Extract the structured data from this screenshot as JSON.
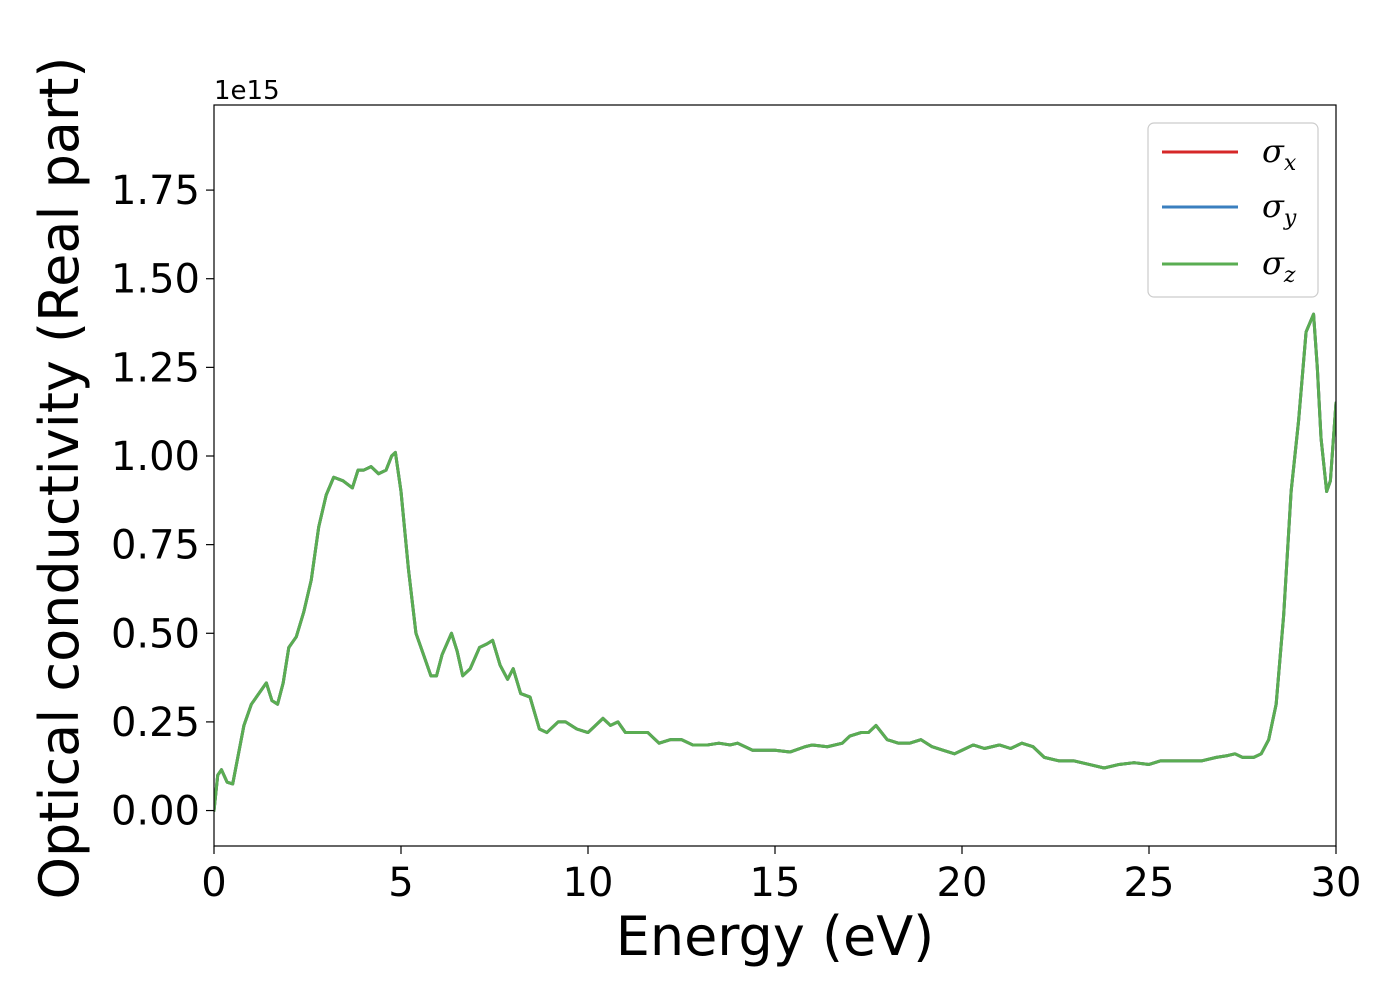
{
  "chart_data": {
    "type": "line",
    "title": "",
    "xlabel": "Energy (eV)",
    "ylabel": "Optical conductivity (Real part)",
    "y_offset_text": "1e15",
    "y_multiplier": 1000000000000000.0,
    "xlim": [
      0,
      30
    ],
    "ylim": [
      -0.1,
      1.99
    ],
    "x_ticks": [
      0,
      5,
      10,
      15,
      20,
      25,
      30
    ],
    "x_tick_labels": [
      "0",
      "5",
      "10",
      "15",
      "20",
      "25",
      "30"
    ],
    "y_ticks": [
      0.0,
      0.25,
      0.5,
      0.75,
      1.0,
      1.25,
      1.5,
      1.75
    ],
    "y_tick_labels": [
      "0.00",
      "0.25",
      "0.50",
      "0.75",
      "1.00",
      "1.25",
      "1.50",
      "1.75"
    ],
    "grid": false,
    "legend_position": "top-right",
    "colors": {
      "sigma_x": "#d62728",
      "sigma_y": "#3a7fbf",
      "sigma_z": "#5aad52"
    },
    "x": [
      0,
      0.1,
      0.2,
      0.35,
      0.5,
      0.6,
      0.8,
      1.0,
      1.2,
      1.4,
      1.55,
      1.7,
      1.85,
      2.0,
      2.2,
      2.4,
      2.6,
      2.8,
      3.0,
      3.2,
      3.45,
      3.7,
      3.85,
      4.0,
      4.2,
      4.4,
      4.6,
      4.75,
      4.85,
      5.0,
      5.2,
      5.4,
      5.6,
      5.8,
      5.95,
      6.1,
      6.35,
      6.5,
      6.65,
      6.85,
      7.1,
      7.3,
      7.45,
      7.65,
      7.85,
      8.0,
      8.2,
      8.45,
      8.7,
      8.9,
      9.2,
      9.4,
      9.7,
      10.0,
      10.4,
      10.6,
      10.8,
      11.0,
      11.3,
      11.6,
      11.9,
      12.2,
      12.5,
      12.8,
      13.2,
      13.5,
      13.8,
      14.0,
      14.4,
      14.8,
      15.0,
      15.4,
      15.8,
      16.0,
      16.4,
      16.8,
      17.0,
      17.3,
      17.5,
      17.7,
      18.0,
      18.3,
      18.6,
      18.9,
      19.2,
      19.5,
      19.8,
      20.0,
      20.3,
      20.6,
      20.8,
      21.0,
      21.3,
      21.6,
      21.9,
      22.2,
      22.6,
      23.0,
      23.4,
      23.8,
      24.2,
      24.6,
      25.0,
      25.3,
      25.6,
      26.0,
      26.4,
      26.8,
      27.1,
      27.3,
      27.5,
      27.8,
      28.0,
      28.2,
      28.4,
      28.6,
      28.8,
      29.0,
      29.2,
      29.4,
      29.5,
      29.6,
      29.75,
      29.85,
      30.0
    ],
    "series": [
      {
        "name": "σx",
        "symbol": "σ",
        "subscript": "x",
        "color": "#d62728",
        "values": [
          0.0,
          0.1,
          0.115,
          0.08,
          0.075,
          0.13,
          0.24,
          0.3,
          0.33,
          0.36,
          0.31,
          0.3,
          0.36,
          0.46,
          0.49,
          0.56,
          0.65,
          0.8,
          0.89,
          0.94,
          0.93,
          0.91,
          0.96,
          0.96,
          0.97,
          0.95,
          0.96,
          1.0,
          1.01,
          0.9,
          0.68,
          0.5,
          0.44,
          0.38,
          0.38,
          0.44,
          0.5,
          0.45,
          0.38,
          0.4,
          0.46,
          0.47,
          0.48,
          0.41,
          0.37,
          0.4,
          0.33,
          0.32,
          0.23,
          0.22,
          0.25,
          0.25,
          0.23,
          0.22,
          0.26,
          0.24,
          0.25,
          0.22,
          0.22,
          0.22,
          0.19,
          0.2,
          0.2,
          0.185,
          0.185,
          0.19,
          0.185,
          0.19,
          0.17,
          0.17,
          0.17,
          0.165,
          0.18,
          0.185,
          0.18,
          0.19,
          0.21,
          0.22,
          0.22,
          0.24,
          0.2,
          0.19,
          0.19,
          0.2,
          0.18,
          0.17,
          0.16,
          0.17,
          0.185,
          0.175,
          0.18,
          0.185,
          0.175,
          0.19,
          0.18,
          0.15,
          0.14,
          0.14,
          0.13,
          0.12,
          0.13,
          0.135,
          0.13,
          0.14,
          0.14,
          0.14,
          0.14,
          0.15,
          0.155,
          0.16,
          0.15,
          0.15,
          0.16,
          0.2,
          0.3,
          0.55,
          0.9,
          1.1,
          1.35,
          1.4,
          1.25,
          1.05,
          0.9,
          0.93,
          1.15
        ]
      },
      {
        "name": "σy",
        "symbol": "σ",
        "subscript": "y",
        "color": "#3a7fbf",
        "values": [
          0.0,
          0.1,
          0.115,
          0.08,
          0.075,
          0.13,
          0.24,
          0.3,
          0.33,
          0.36,
          0.31,
          0.3,
          0.36,
          0.46,
          0.49,
          0.56,
          0.65,
          0.8,
          0.89,
          0.94,
          0.93,
          0.91,
          0.96,
          0.96,
          0.97,
          0.95,
          0.96,
          1.0,
          1.01,
          0.9,
          0.68,
          0.5,
          0.44,
          0.38,
          0.38,
          0.44,
          0.5,
          0.45,
          0.38,
          0.4,
          0.46,
          0.47,
          0.48,
          0.41,
          0.37,
          0.4,
          0.33,
          0.32,
          0.23,
          0.22,
          0.25,
          0.25,
          0.23,
          0.22,
          0.26,
          0.24,
          0.25,
          0.22,
          0.22,
          0.22,
          0.19,
          0.2,
          0.2,
          0.185,
          0.185,
          0.19,
          0.185,
          0.19,
          0.17,
          0.17,
          0.17,
          0.165,
          0.18,
          0.185,
          0.18,
          0.19,
          0.21,
          0.22,
          0.22,
          0.24,
          0.2,
          0.19,
          0.19,
          0.2,
          0.18,
          0.17,
          0.16,
          0.17,
          0.185,
          0.175,
          0.18,
          0.185,
          0.175,
          0.19,
          0.18,
          0.15,
          0.14,
          0.14,
          0.13,
          0.12,
          0.13,
          0.135,
          0.13,
          0.14,
          0.14,
          0.14,
          0.14,
          0.15,
          0.155,
          0.16,
          0.15,
          0.15,
          0.16,
          0.2,
          0.3,
          0.55,
          0.9,
          1.1,
          1.35,
          1.4,
          1.25,
          1.05,
          0.9,
          0.93,
          1.15
        ]
      },
      {
        "name": "σz",
        "symbol": "σ",
        "subscript": "z",
        "color": "#5aad52",
        "values": [
          0.0,
          0.1,
          0.115,
          0.08,
          0.075,
          0.13,
          0.24,
          0.3,
          0.33,
          0.36,
          0.31,
          0.3,
          0.36,
          0.46,
          0.49,
          0.56,
          0.65,
          0.8,
          0.89,
          0.94,
          0.93,
          0.91,
          0.96,
          0.96,
          0.97,
          0.95,
          0.96,
          1.0,
          1.01,
          0.9,
          0.68,
          0.5,
          0.44,
          0.38,
          0.38,
          0.44,
          0.5,
          0.45,
          0.38,
          0.4,
          0.46,
          0.47,
          0.48,
          0.41,
          0.37,
          0.4,
          0.33,
          0.32,
          0.23,
          0.22,
          0.25,
          0.25,
          0.23,
          0.22,
          0.26,
          0.24,
          0.25,
          0.22,
          0.22,
          0.22,
          0.19,
          0.2,
          0.2,
          0.185,
          0.185,
          0.19,
          0.185,
          0.19,
          0.17,
          0.17,
          0.17,
          0.165,
          0.18,
          0.185,
          0.18,
          0.19,
          0.21,
          0.22,
          0.22,
          0.24,
          0.2,
          0.19,
          0.19,
          0.2,
          0.18,
          0.17,
          0.16,
          0.17,
          0.185,
          0.175,
          0.18,
          0.185,
          0.175,
          0.19,
          0.18,
          0.15,
          0.14,
          0.14,
          0.13,
          0.12,
          0.13,
          0.135,
          0.13,
          0.14,
          0.14,
          0.14,
          0.14,
          0.15,
          0.155,
          0.16,
          0.15,
          0.15,
          0.16,
          0.2,
          0.3,
          0.55,
          0.9,
          1.1,
          1.35,
          1.4,
          1.25,
          1.05,
          0.9,
          0.93,
          1.15
        ]
      }
    ]
  }
}
